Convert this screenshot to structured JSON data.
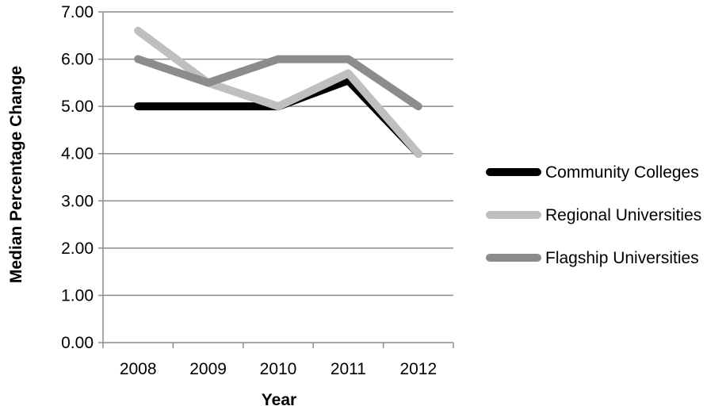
{
  "chart_data": {
    "type": "line",
    "title": "",
    "xlabel": "Year",
    "ylabel": "Median Percentage Change",
    "categories": [
      "2008",
      "2009",
      "2010",
      "2011",
      "2012"
    ],
    "ylim": [
      0,
      7
    ],
    "yticks": [
      "0.00",
      "1.00",
      "2.00",
      "3.00",
      "4.00",
      "5.00",
      "6.00",
      "7.00"
    ],
    "grid": true,
    "legend": "right",
    "series": [
      {
        "name": "Community Colleges",
        "values": [
          5.0,
          5.0,
          5.0,
          5.55,
          4.0
        ],
        "color": "#000000"
      },
      {
        "name": "Regional Universities",
        "values": [
          6.6,
          5.5,
          5.0,
          5.7,
          4.0
        ],
        "color": "#bfbfbf"
      },
      {
        "name": "Flagship Universities",
        "values": [
          6.0,
          5.5,
          6.0,
          6.0,
          5.0
        ],
        "color": "#8c8c8c"
      }
    ]
  }
}
